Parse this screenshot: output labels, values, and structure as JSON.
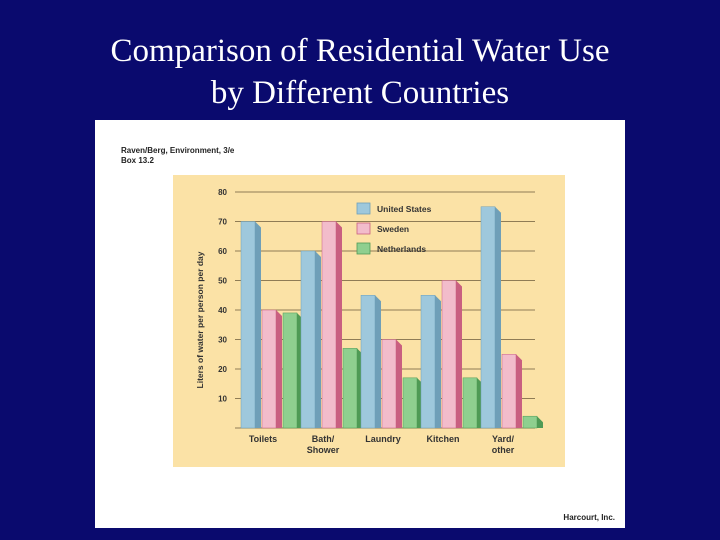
{
  "slide": {
    "title_line1": "Comparison of Residential Water Use",
    "title_line2": "by Different Countries"
  },
  "figure": {
    "source_line1": "Raven/Berg, Environment, 3/e",
    "source_line2": "Box 13.2",
    "credit": "Harcourt, Inc."
  },
  "chart_data": {
    "type": "bar",
    "categories": [
      [
        "Toilets"
      ],
      [
        "Bath/",
        "Shower"
      ],
      [
        "Laundry"
      ],
      [
        "Kitchen"
      ],
      [
        "Yard/",
        "other"
      ]
    ],
    "series": [
      {
        "name": "United States",
        "values": [
          70,
          60,
          45,
          45,
          75
        ],
        "color": "#9ec8dc",
        "shade": "#6f9fb8"
      },
      {
        "name": "Sweden",
        "values": [
          40,
          70,
          30,
          50,
          25
        ],
        "color": "#f2bccb",
        "shade": "#c95f80"
      },
      {
        "name": "Netherlands",
        "values": [
          39,
          27,
          17,
          17,
          4
        ],
        "color": "#8fcf8f",
        "shade": "#4f9a55"
      }
    ],
    "title": "",
    "xlabel": "",
    "ylabel": "Liters of water per person per day",
    "ylim": [
      0,
      80
    ],
    "yticks": [
      10,
      20,
      30,
      40,
      50,
      60,
      70,
      80
    ],
    "grid": true,
    "legend_position": "top-right",
    "panel_color": "#fbe2a6"
  }
}
